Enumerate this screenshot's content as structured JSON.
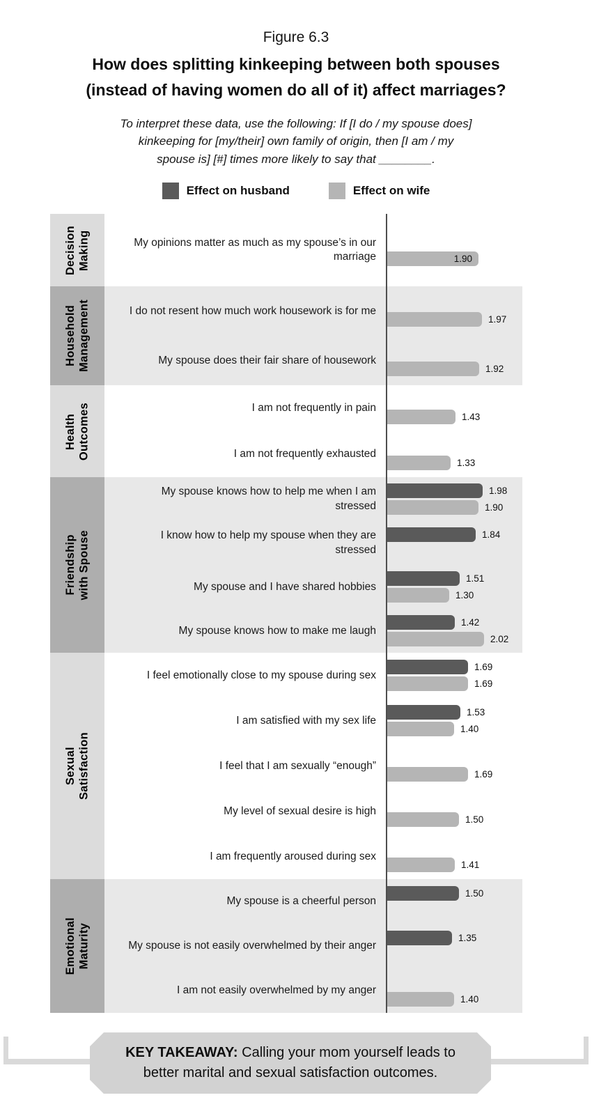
{
  "header": {
    "figure_label": "Figure 6.3",
    "title": "How does splitting kinkeeping between both spouses (instead of having women do all of it) affect marriages?",
    "title_lines": [
      "How does splitting kinkeeping between both spouses",
      "(instead of having women do all of it) affect marriages?"
    ],
    "note_lines": [
      "To interpret these data, use the following: If [I do / my spouse does]",
      "kinkeeping for [my/their] own family of origin, then [I am / my",
      "spouse is] [#] times more likely to say that ________."
    ]
  },
  "chart_data": {
    "type": "bar",
    "orientation": "horizontal",
    "title": "How does splitting kinkeeping between both spouses (instead of having women do all of it) affect marriages?",
    "note": "To interpret these data, use the following: If [I do / my spouse does] kinkeeping for [my/their] own family of origin, then [I am / my spouse is] [#] times more likely to say that ________.",
    "legend_position": "top",
    "value_axis_shown": false,
    "series": [
      {
        "name": "Effect on husband",
        "color": "#5a5a5a"
      },
      {
        "name": "Effect on wife",
        "color": "#b5b5b5"
      }
    ],
    "sections": [
      {
        "category": "Decision Making",
        "category_lines": [
          "Decision",
          "Making"
        ],
        "items": [
          {
            "label": "My opinions matter as much as my spouse’s in our marriage",
            "husband": null,
            "wife": "1.90",
            "wife_label_inside": true
          }
        ]
      },
      {
        "category": "Household Management",
        "category_lines": [
          "Household",
          "Management"
        ],
        "items": [
          {
            "label": "I do not resent how much work housework is for me",
            "husband": null,
            "wife": "1.97"
          },
          {
            "label": "My spouse does their fair share of housework",
            "husband": null,
            "wife": "1.92"
          }
        ]
      },
      {
        "category": "Health Outcomes",
        "category_lines": [
          "Health",
          "Outcomes"
        ],
        "items": [
          {
            "label": "I am not frequently in pain",
            "husband": null,
            "wife": "1.43"
          },
          {
            "label": "I am not frequently exhausted",
            "husband": null,
            "wife": "1.33"
          }
        ]
      },
      {
        "category": "Friendship with Spouse",
        "category_lines": [
          "Friendship",
          "with Spouse"
        ],
        "items": [
          {
            "label": "My spouse knows how to help me when I am stressed",
            "husband": "1.98",
            "wife": "1.90"
          },
          {
            "label": "I know how to help my spouse when they are stressed",
            "husband": "1.84",
            "wife": null
          },
          {
            "label": "My spouse and I have shared hobbies",
            "husband": "1.51",
            "wife": "1.30"
          },
          {
            "label": "My spouse knows how to make me laugh",
            "husband": "1.42",
            "wife": "2.02"
          }
        ]
      },
      {
        "category": "Sexual Satisfaction",
        "category_lines": [
          "Sexual",
          "Satisfaction"
        ],
        "items": [
          {
            "label": "I feel emotionally close to my spouse during sex",
            "husband": "1.69",
            "wife": "1.69"
          },
          {
            "label": "I am satisfied with my sex life",
            "husband": "1.53",
            "wife": "1.40"
          },
          {
            "label": "I feel that I am sexually “enough”",
            "husband": null,
            "wife": "1.69"
          },
          {
            "label": "My level of sexual desire is high",
            "husband": null,
            "wife": "1.50"
          },
          {
            "label": "I am frequently aroused during sex",
            "husband": null,
            "wife": "1.41"
          }
        ]
      },
      {
        "category": "Emotional Maturity",
        "category_lines": [
          "Emotional",
          "Maturity"
        ],
        "items": [
          {
            "label": "My spouse is a cheerful person",
            "husband": "1.50",
            "wife": null
          },
          {
            "label": "My spouse is not easily overwhelmed by their anger",
            "husband": "1.35",
            "wife": null
          },
          {
            "label": "I am not easily overwhelmed by my anger",
            "husband": null,
            "wife": "1.40"
          }
        ]
      }
    ]
  },
  "takeaway": {
    "label": "KEY TAKEAWAY:",
    "text": "Calling your mom yourself leads to better marital and sexual satisfaction outcomes."
  }
}
